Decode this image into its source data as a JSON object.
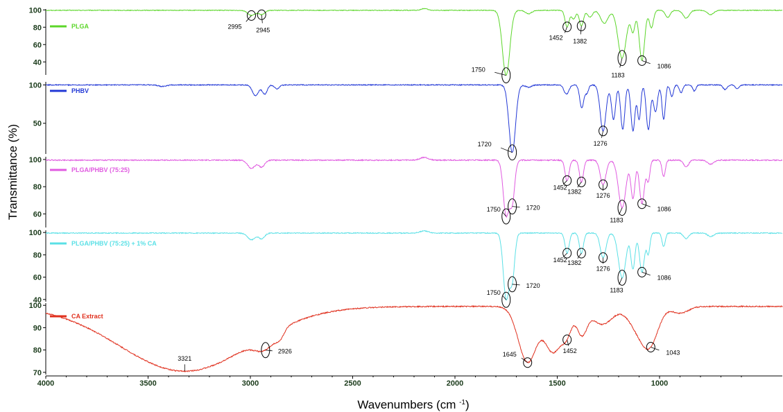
{
  "chart_data": {
    "type": "line",
    "title": "",
    "xlabel": "Wavenumbers (cm -1)",
    "ylabel": "Transmittance (%)",
    "xlim": [
      4000,
      400
    ],
    "x_ticks": [
      4000,
      3500,
      3000,
      2500,
      2000,
      1500,
      1000
    ],
    "x_reversed": true,
    "grid": false,
    "legend": "top-left of each panel",
    "series": [
      {
        "name": "PLGA",
        "color": "#5cd62a",
        "ylim": [
          25,
          101
        ],
        "y_ticks": [
          100,
          80,
          60,
          40
        ],
        "baseline": 99.5,
        "noise": 0.4,
        "peaks": [
          [
            2995,
            6,
            18
          ],
          [
            2945,
            5,
            15
          ],
          [
            2150,
            -2,
            15
          ],
          [
            1750,
            75,
            18
          ],
          [
            1640,
            4,
            15
          ],
          [
            1452,
            19,
            10
          ],
          [
            1420,
            10,
            10
          ],
          [
            1382,
            18,
            10
          ],
          [
            1340,
            8,
            12
          ],
          [
            1270,
            15,
            18
          ],
          [
            1183,
            55,
            20
          ],
          [
            1130,
            24,
            10
          ],
          [
            1086,
            58,
            13
          ],
          [
            1040,
            20,
            10
          ],
          [
            960,
            8,
            12
          ],
          [
            870,
            9,
            15
          ],
          [
            750,
            5,
            15
          ]
        ],
        "annotations": [
          {
            "x": 2995,
            "label": "2995"
          },
          {
            "x": 2945,
            "label": "2945"
          },
          {
            "x": 1750,
            "label": "1750"
          },
          {
            "x": 1452,
            "label": "1452"
          },
          {
            "x": 1382,
            "label": "1382"
          },
          {
            "x": 1183,
            "label": "1183"
          },
          {
            "x": 1086,
            "label": "1086"
          }
        ]
      },
      {
        "name": "PHBV",
        "color": "#2238d6",
        "ylim": [
          10,
          104
        ],
        "y_ticks": [
          100,
          50
        ],
        "baseline": 100,
        "noise": 0.6,
        "peaks": [
          [
            3430,
            2,
            20
          ],
          [
            2975,
            14,
            15
          ],
          [
            2930,
            12,
            12
          ],
          [
            2870,
            5,
            12
          ],
          [
            1720,
            88,
            16
          ],
          [
            1640,
            3,
            15
          ],
          [
            1455,
            12,
            12
          ],
          [
            1380,
            30,
            10
          ],
          [
            1355,
            10,
            8
          ],
          [
            1276,
            60,
            14
          ],
          [
            1225,
            45,
            10
          ],
          [
            1180,
            58,
            10
          ],
          [
            1130,
            60,
            10
          ],
          [
            1100,
            45,
            8
          ],
          [
            1055,
            58,
            10
          ],
          [
            1020,
            35,
            10
          ],
          [
            980,
            45,
            8
          ],
          [
            940,
            15,
            8
          ],
          [
            895,
            10,
            8
          ],
          [
            830,
            8,
            8
          ],
          [
            680,
            6,
            10
          ],
          [
            620,
            5,
            10
          ]
        ],
        "annotations": [
          {
            "x": 1720,
            "label": "1720"
          },
          {
            "x": 1276,
            "label": "1276"
          }
        ]
      },
      {
        "name": "PLGA/PHBV (75:25)",
        "color": "#e05ae0",
        "ylim": [
          50,
          102
        ],
        "y_ticks": [
          100,
          80,
          60
        ],
        "baseline": 99.5,
        "noise": 0.4,
        "peaks": [
          [
            2995,
            6,
            18
          ],
          [
            2945,
            5,
            15
          ],
          [
            2150,
            -2,
            20
          ],
          [
            1750,
            40,
            14
          ],
          [
            1720,
            30,
            12
          ],
          [
            1452,
            15,
            10
          ],
          [
            1382,
            16,
            10
          ],
          [
            1276,
            18,
            14
          ],
          [
            1183,
            35,
            18
          ],
          [
            1130,
            28,
            10
          ],
          [
            1086,
            32,
            12
          ],
          [
            1055,
            15,
            8
          ],
          [
            980,
            12,
            8
          ],
          [
            870,
            5,
            12
          ],
          [
            750,
            3,
            15
          ]
        ],
        "annotations": [
          {
            "x": 1750,
            "label": "1750"
          },
          {
            "x": 1720,
            "label": "1720"
          },
          {
            "x": 1452,
            "label": "1452"
          },
          {
            "x": 1382,
            "label": "1382"
          },
          {
            "x": 1276,
            "label": "1276"
          },
          {
            "x": 1183,
            "label": "1183"
          },
          {
            "x": 1086,
            "label": "1086"
          }
        ]
      },
      {
        "name": "PLGA/PHBV (75:25) + 1% CA",
        "color": "#5ae0e6",
        "ylim": [
          38,
          102
        ],
        "y_ticks": [
          100,
          80,
          60,
          40
        ],
        "baseline": 99.5,
        "noise": 0.4,
        "peaks": [
          [
            2995,
            6,
            18
          ],
          [
            2945,
            5,
            15
          ],
          [
            2150,
            -2,
            20
          ],
          [
            1750,
            58,
            14
          ],
          [
            1720,
            40,
            12
          ],
          [
            1452,
            18,
            10
          ],
          [
            1382,
            18,
            10
          ],
          [
            1276,
            22,
            14
          ],
          [
            1183,
            40,
            18
          ],
          [
            1130,
            32,
            10
          ],
          [
            1086,
            35,
            12
          ],
          [
            1055,
            18,
            8
          ],
          [
            980,
            12,
            8
          ],
          [
            870,
            5,
            12
          ],
          [
            750,
            3,
            15
          ]
        ],
        "annotations": [
          {
            "x": 1750,
            "label": "1750"
          },
          {
            "x": 1720,
            "label": "1720"
          },
          {
            "x": 1452,
            "label": "1452"
          },
          {
            "x": 1382,
            "label": "1382"
          },
          {
            "x": 1276,
            "label": "1276"
          },
          {
            "x": 1183,
            "label": "1183"
          },
          {
            "x": 1086,
            "label": "1086"
          }
        ]
      },
      {
        "name": "CA Extract",
        "color": "#e0301e",
        "ylim": [
          69,
          101
        ],
        "y_ticks": [
          100,
          90,
          80,
          70
        ],
        "baseline": 99.5,
        "noise": 0.25,
        "peaks": [
          [
            3321,
            29,
            320
          ],
          [
            2926,
            6,
            50
          ],
          [
            2855,
            3,
            20
          ],
          [
            1645,
            25,
            45
          ],
          [
            1520,
            20,
            40
          ],
          [
            1452,
            10,
            25
          ],
          [
            1380,
            12,
            25
          ],
          [
            1280,
            8,
            50
          ],
          [
            1100,
            10,
            50
          ],
          [
            1043,
            13,
            40
          ],
          [
            900,
            3,
            40
          ]
        ],
        "annotations": [
          {
            "x": 3321,
            "label": "3321"
          },
          {
            "x": 2926,
            "label": "2926"
          },
          {
            "x": 1645,
            "label": "1645"
          },
          {
            "x": 1452,
            "label": "1452"
          },
          {
            "x": 1043,
            "label": "1043"
          }
        ]
      }
    ]
  }
}
